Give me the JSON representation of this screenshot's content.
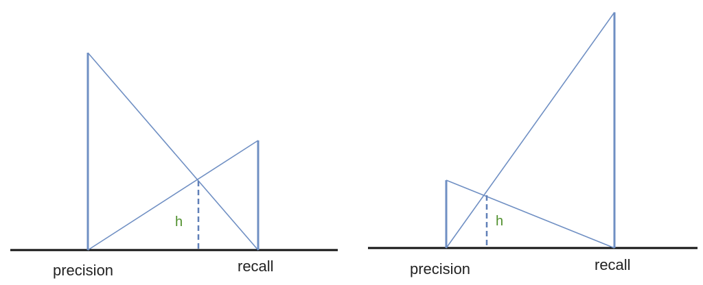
{
  "diagrams": [
    {
      "labels": {
        "precision": "precision",
        "recall": "recall",
        "height": "h"
      }
    },
    {
      "labels": {
        "precision": "precision",
        "recall": "recall",
        "height": "h"
      }
    }
  ],
  "colors": {
    "axis": "#111111",
    "line": "#6f8fc3",
    "h_label": "#4f8f2c"
  }
}
